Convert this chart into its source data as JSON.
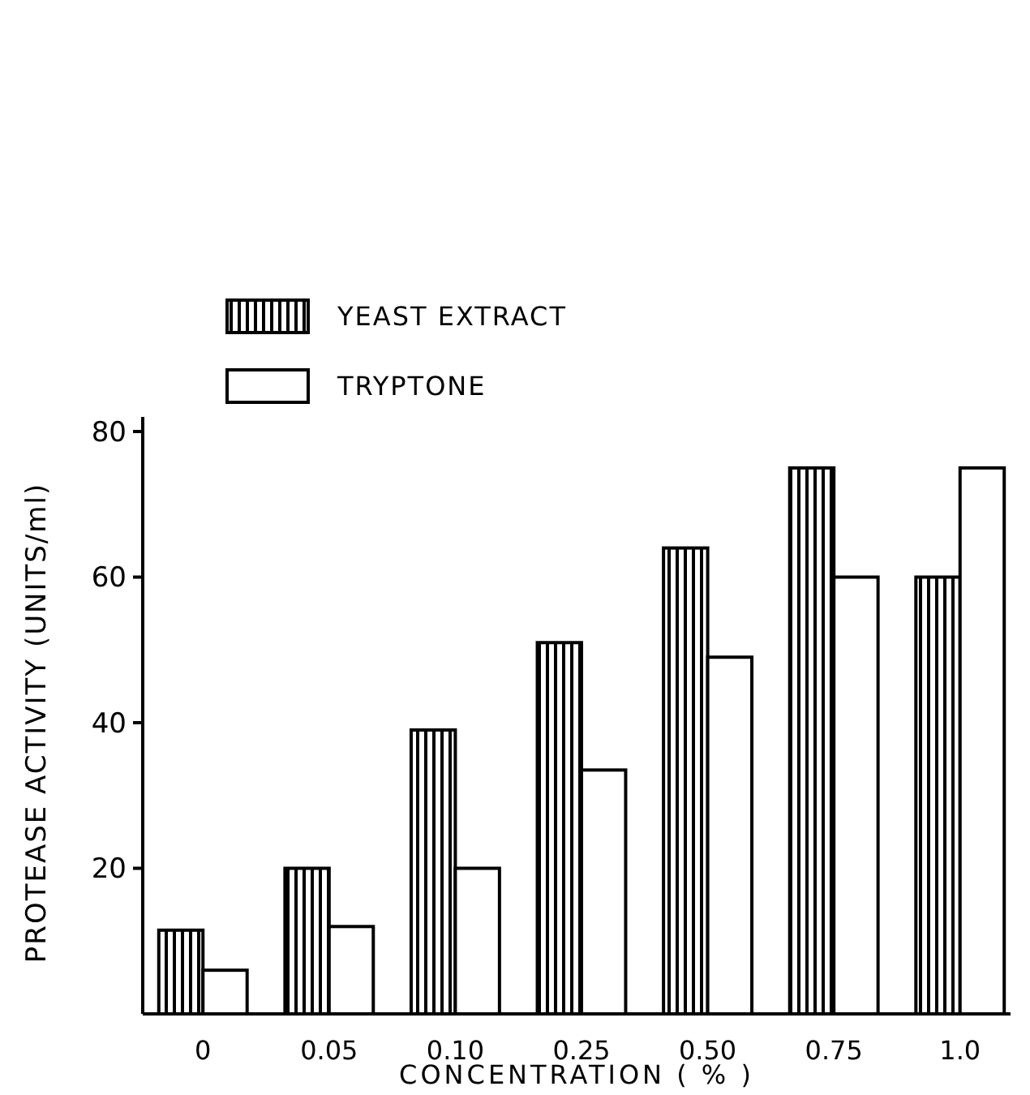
{
  "chart_data": {
    "type": "bar",
    "xlabel": "CONCENTRATION  ( % )",
    "ylabel": "PROTEASE ACTIVITY (UNITS/ml)",
    "categories": [
      "0",
      "0.05",
      "0.10",
      "0.25",
      "0.50",
      "0.75",
      "1.0"
    ],
    "series": [
      {
        "name": "YEAST EXTRACT",
        "color": "#000000",
        "values": [
          11.5,
          20,
          39,
          51,
          64,
          75,
          60
        ]
      },
      {
        "name": "TRYPTONE",
        "color": "#ffffff",
        "values": [
          6,
          12,
          20,
          33.5,
          49,
          60,
          75
        ]
      }
    ],
    "ylim": [
      0,
      82
    ],
    "yticks": [
      20,
      40,
      60,
      80
    ],
    "grid": false,
    "legend": "top"
  }
}
